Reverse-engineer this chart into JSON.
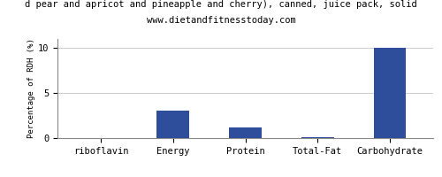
{
  "title_line1": "d pear and apricot and pineapple and cherry), canned, juice pack, solid",
  "title_line2": "www.dietandfitnesstoday.com",
  "categories": [
    "riboflavin",
    "Energy",
    "Protein",
    "Total-Fat",
    "Carbohydrate"
  ],
  "values": [
    0.0,
    3.0,
    1.2,
    0.1,
    10.0
  ],
  "bar_color": "#2e4d9b",
  "ylabel": "Percentage of RDH (%)",
  "ylim": [
    0,
    11
  ],
  "yticks": [
    0,
    5,
    10
  ],
  "background_color": "#ffffff",
  "border_color": "#888888",
  "title1_fontsize": 7.5,
  "title2_fontsize": 7.5,
  "xlabel_fontsize": 7.5,
  "ylabel_fontsize": 6.5,
  "ytick_fontsize": 7.5,
  "bar_width": 0.45
}
